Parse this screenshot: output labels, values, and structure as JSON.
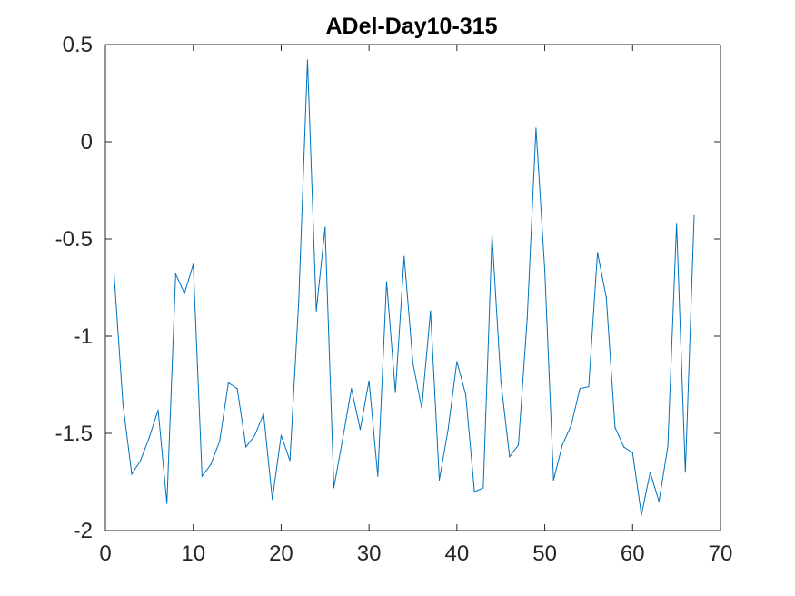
{
  "chart_data": {
    "type": "line",
    "title": "ADel-Day10-315",
    "xlabel": "",
    "ylabel": "",
    "xlim": [
      0,
      70
    ],
    "ylim": [
      -2,
      0.5
    ],
    "xticks": [
      0,
      10,
      20,
      30,
      40,
      50,
      60,
      70
    ],
    "yticks": [
      0.5,
      0,
      -0.5,
      -1,
      -1.5,
      -2
    ],
    "xtick_labels": [
      "0",
      "10",
      "20",
      "30",
      "40",
      "50",
      "60",
      "70"
    ],
    "ytick_labels": [
      "0.5",
      "0",
      "-0.5",
      "-1",
      "-1.5",
      "-2"
    ],
    "grid": false,
    "series": [
      {
        "color": "#0072BD",
        "x": [
          1,
          2,
          3,
          4,
          5,
          6,
          7,
          8,
          9,
          10,
          11,
          12,
          13,
          14,
          15,
          16,
          17,
          18,
          19,
          20,
          21,
          22,
          23,
          24,
          25,
          26,
          27,
          28,
          29,
          30,
          31,
          32,
          33,
          34,
          35,
          36,
          37,
          38,
          39,
          40,
          41,
          42,
          43,
          44,
          45,
          46,
          47,
          48,
          49,
          50,
          51,
          52,
          53,
          54,
          55,
          56,
          57,
          58,
          59,
          60,
          61,
          62,
          63,
          64,
          65,
          66,
          67
        ],
        "y": [
          -0.69,
          -1.35,
          -1.71,
          -1.64,
          -1.52,
          -1.38,
          -1.86,
          -0.68,
          -0.78,
          -0.63,
          -1.72,
          -1.66,
          -1.54,
          -1.24,
          -1.27,
          -1.57,
          -1.51,
          -1.4,
          -1.84,
          -1.51,
          -1.64,
          -0.82,
          0.42,
          -0.87,
          -0.44,
          -1.78,
          -1.53,
          -1.27,
          -1.48,
          -1.23,
          -1.72,
          -0.72,
          -1.29,
          -0.59,
          -1.14,
          -1.37,
          -0.87,
          -1.74,
          -1.48,
          -1.13,
          -1.3,
          -1.8,
          -1.78,
          -0.48,
          -1.23,
          -1.62,
          -1.56,
          -0.91,
          0.07,
          -0.66,
          -1.74,
          -1.56,
          -1.46,
          -1.27,
          -1.26,
          -0.57,
          -0.8,
          -1.47,
          -1.57,
          -1.6,
          -1.92,
          -1.7,
          -1.85,
          -1.57,
          -0.42,
          -1.7,
          -0.38
        ]
      }
    ]
  }
}
